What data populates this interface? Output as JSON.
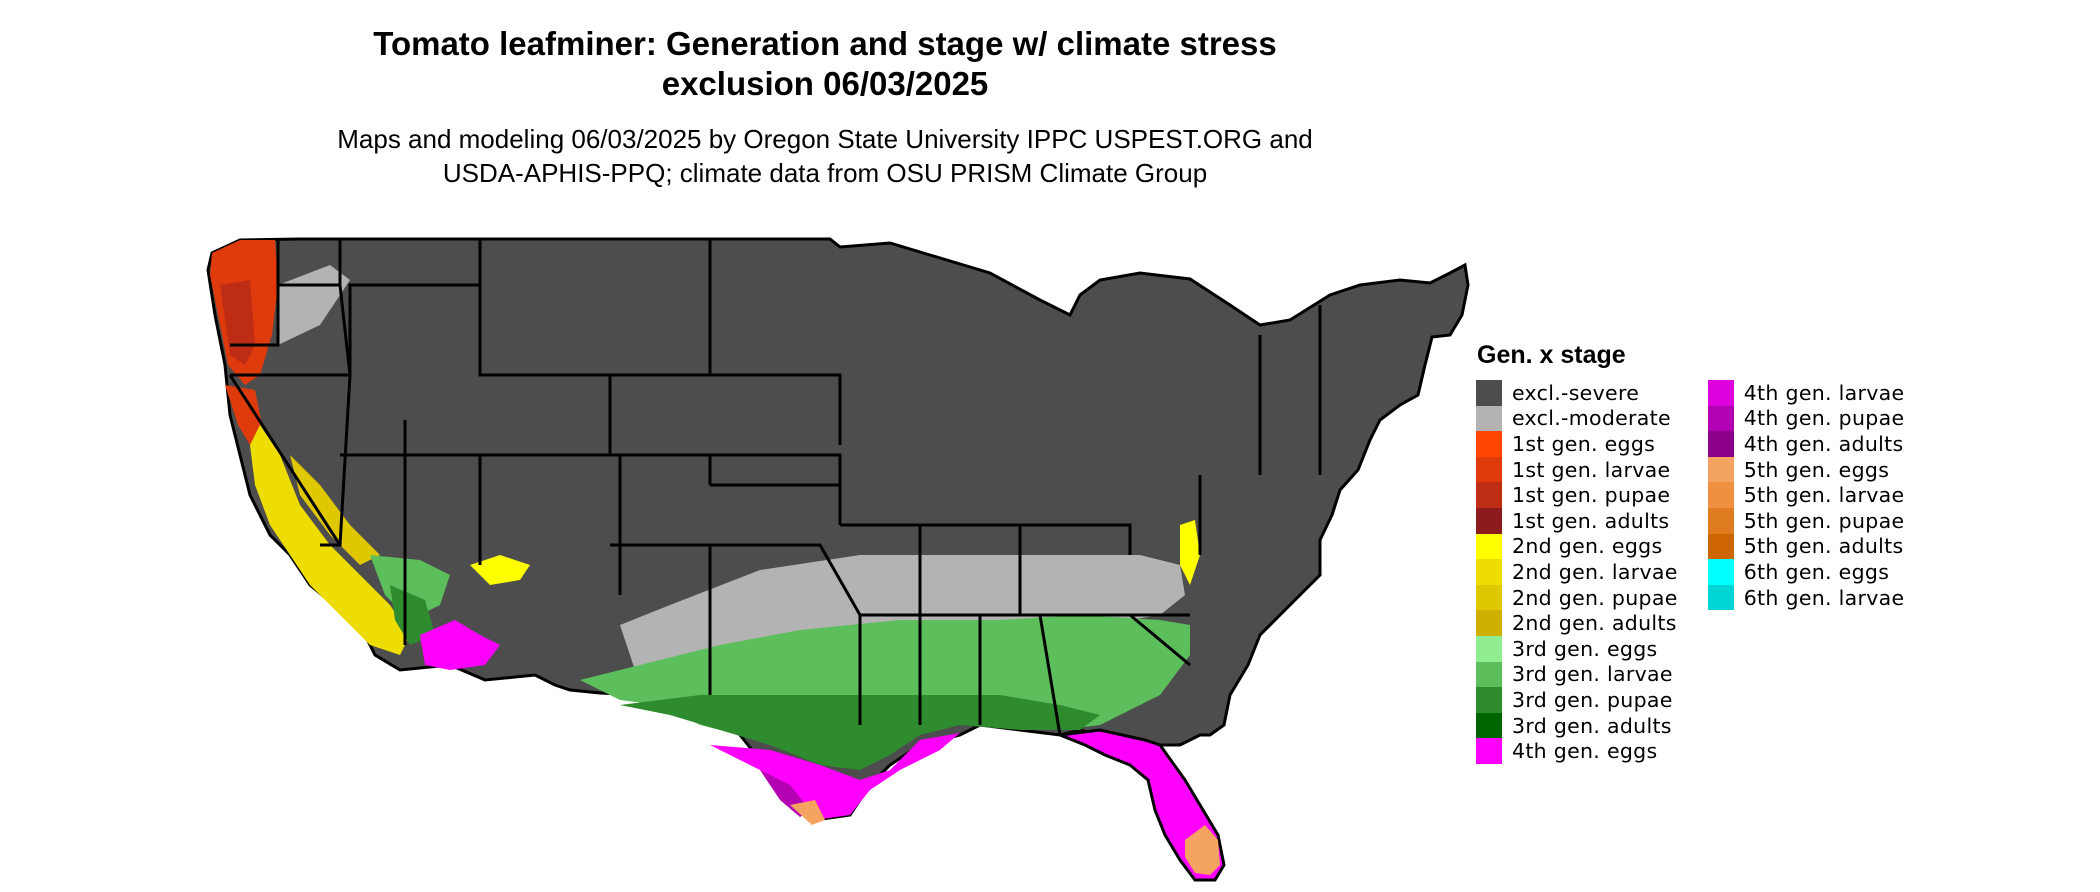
{
  "title": {
    "line1": "Tomato leafminer: Generation and stage w/ climate stress",
    "line2": "exclusion 06/03/2025"
  },
  "subtitle": {
    "line1": "Maps and modeling 06/03/2025 by Oregon State University IPPC USPEST.ORG and",
    "line2": "USDA-APHIS-PPQ; climate data from OSU PRISM Climate Group"
  },
  "legend": {
    "title": "Gen. x stage",
    "columns": [
      [
        {
          "label": "excl.-severe",
          "color": "#4d4d4d"
        },
        {
          "label": "excl.-moderate",
          "color": "#b3b3b3"
        },
        {
          "label": "1st gen. eggs",
          "color": "#ff4500"
        },
        {
          "label": "1st gen. larvae",
          "color": "#de3a0c"
        },
        {
          "label": "1st gen. pupae",
          "color": "#bf2c14"
        },
        {
          "label": "1st gen. adults",
          "color": "#8c1c1c"
        },
        {
          "label": "2nd gen. eggs",
          "color": "#ffff00"
        },
        {
          "label": "2nd gen. larvae",
          "color": "#eedd00"
        },
        {
          "label": "2nd gen. pupae",
          "color": "#e0c800"
        },
        {
          "label": "2nd gen. adults",
          "color": "#cfb000"
        },
        {
          "label": "3rd gen. eggs",
          "color": "#90ee90"
        },
        {
          "label": "3rd gen. larvae",
          "color": "#5cbf5c"
        },
        {
          "label": "3rd gen. pupae",
          "color": "#2e8b2e"
        },
        {
          "label": "3rd gen. adults",
          "color": "#006400"
        },
        {
          "label": "4th gen. eggs",
          "color": "#ff00ff"
        }
      ],
      [
        {
          "label": "4th gen. larvae",
          "color": "#dd00dd"
        },
        {
          "label": "4th gen. pupae",
          "color": "#b300b3"
        },
        {
          "label": "4th gen. adults",
          "color": "#8b008b"
        },
        {
          "label": "5th gen. eggs",
          "color": "#f4a460"
        },
        {
          "label": "5th gen. larvae",
          "color": "#ee9040"
        },
        {
          "label": "5th gen. pupae",
          "color": "#e07c20"
        },
        {
          "label": "5th gen. adults",
          "color": "#cd6600"
        },
        {
          "label": "6th gen. eggs",
          "color": "#00ffff"
        },
        {
          "label": "6th gen. larvae",
          "color": "#00d5d5"
        }
      ]
    ]
  }
}
